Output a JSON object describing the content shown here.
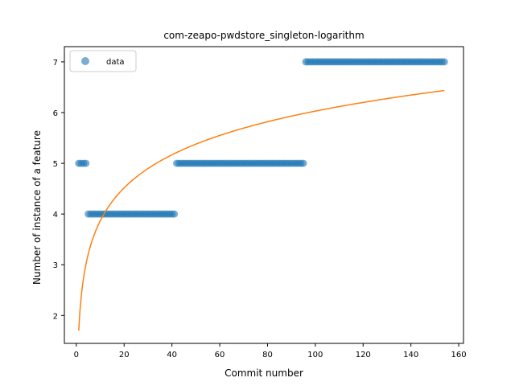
{
  "chart_data": {
    "type": "scatter",
    "title": "com-zeapo-pwdstore_singleton-logarithm",
    "xlabel": "Commit number",
    "ylabel": "Number of instance of a feature",
    "xlim": [
      -5,
      162
    ],
    "ylim": [
      1.45,
      7.3
    ],
    "xticks": [
      0,
      20,
      40,
      60,
      80,
      100,
      120,
      140,
      160
    ],
    "yticks": [
      2,
      3,
      4,
      5,
      6,
      7
    ],
    "grid": false,
    "legend": {
      "position": "top-left",
      "entries": [
        "data"
      ]
    },
    "series": [
      {
        "name": "data",
        "kind": "points",
        "color": "#1f77b4",
        "segments": [
          {
            "x_start": 1,
            "x_end": 4,
            "y": 5
          },
          {
            "x_start": 5,
            "x_end": 41,
            "y": 4
          },
          {
            "x_start": 42,
            "x_end": 95,
            "y": 5
          },
          {
            "x_start": 96,
            "x_end": 154,
            "y": 7
          }
        ]
      },
      {
        "kind": "fit-line",
        "color": "#ff7f0e",
        "model": "logarithmic",
        "x_range": [
          1,
          154
        ],
        "a": 1.7,
        "b": 0.94
      }
    ]
  }
}
